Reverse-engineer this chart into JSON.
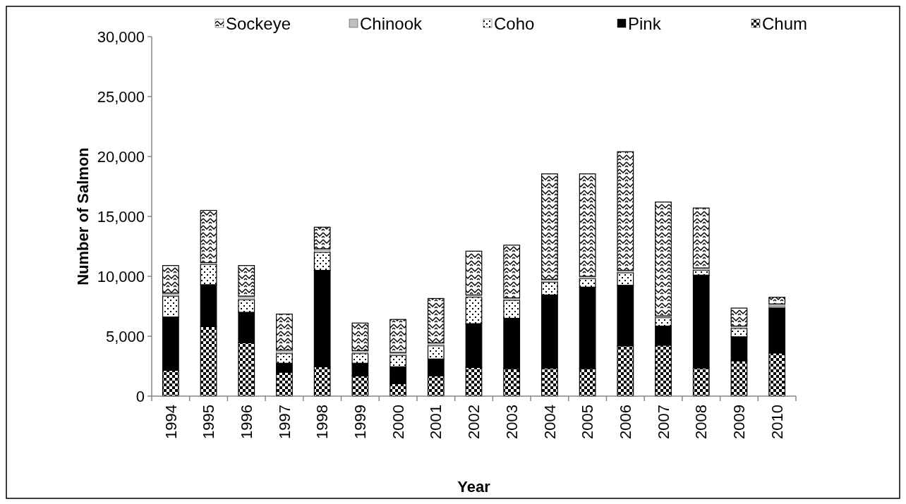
{
  "chart_data": {
    "type": "bar",
    "stacked": true,
    "xlabel": "Year",
    "ylabel": "Number of Salmon",
    "categories": [
      "1994",
      "1995",
      "1996",
      "1997",
      "1998",
      "1999",
      "2000",
      "2001",
      "2002",
      "2003",
      "2004",
      "2005",
      "2006",
      "2007",
      "2008",
      "2009",
      "2010"
    ],
    "series": [
      {
        "name": "Chum",
        "color": "#000000",
        "values": [
          2150,
          5800,
          4450,
          2000,
          2450,
          1700,
          1050,
          1700,
          2400,
          2300,
          2350,
          2300,
          4200,
          4250,
          2350,
          2950,
          3600
        ]
      },
      {
        "name": "Pink",
        "color": "#000000",
        "values": [
          4450,
          3500,
          2550,
          750,
          8050,
          1050,
          1400,
          1400,
          3650,
          4200,
          6100,
          6800,
          5050,
          1600,
          7750,
          2000,
          3800
        ]
      },
      {
        "name": "Coho",
        "color": "#000000",
        "values": [
          1750,
          1700,
          1050,
          800,
          1500,
          800,
          950,
          1100,
          2200,
          1500,
          1050,
          700,
          1050,
          700,
          400,
          700,
          100
        ]
      },
      {
        "name": "Chinook",
        "color": "#bfbfbf",
        "values": [
          250,
          150,
          300,
          300,
          300,
          250,
          250,
          250,
          200,
          200,
          250,
          200,
          200,
          150,
          200,
          200,
          200
        ]
      },
      {
        "name": "Sockeye",
        "color": "#000000",
        "values": [
          2300,
          4350,
          2550,
          3000,
          1800,
          2300,
          2750,
          3700,
          3650,
          4400,
          8800,
          8550,
          9900,
          9500,
          5000,
          1500,
          550
        ]
      }
    ],
    "ylim": [
      0,
      30000
    ],
    "yticks": [
      {
        "value": 0,
        "label": "0"
      },
      {
        "value": 5000,
        "label": "5,000"
      },
      {
        "value": 10000,
        "label": "10,000"
      },
      {
        "value": 15000,
        "label": "15,000"
      },
      {
        "value": 20000,
        "label": "20,000"
      },
      {
        "value": 25000,
        "label": "25,000"
      },
      {
        "value": 30000,
        "label": "30,000"
      }
    ],
    "grid": false,
    "legend": "top"
  }
}
